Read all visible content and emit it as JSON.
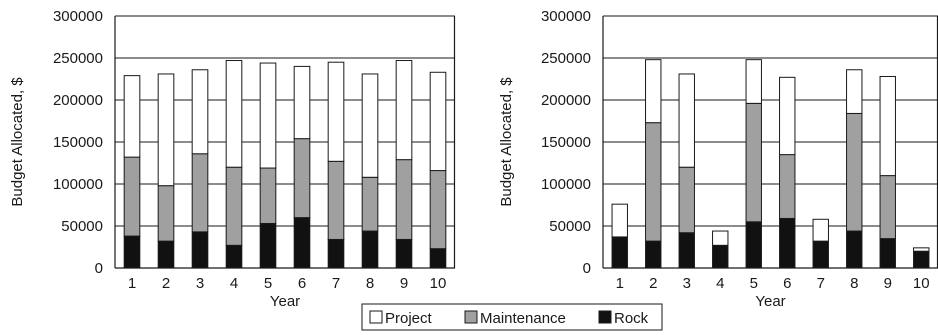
{
  "chart_data": [
    {
      "type": "bar",
      "stacked": true,
      "categories": [
        "1",
        "2",
        "3",
        "4",
        "5",
        "6",
        "7",
        "8",
        "9",
        "10"
      ],
      "series": [
        {
          "name": "Rock",
          "color": "#111111",
          "values": [
            38000,
            32000,
            43000,
            27000,
            53000,
            60000,
            34000,
            44000,
            34000,
            23000
          ]
        },
        {
          "name": "Maintenance",
          "color": "#a0a0a0",
          "values": [
            94000,
            66000,
            93000,
            93000,
            66000,
            94000,
            93000,
            64000,
            95000,
            93000
          ]
        },
        {
          "name": "Project",
          "color": "#ffffff",
          "values": [
            97000,
            133000,
            100000,
            127000,
            125000,
            86000,
            118000,
            123000,
            118000,
            117000
          ]
        }
      ],
      "xlabel": "Year",
      "ylabel": "Budget Allocated, $",
      "ylim": [
        0,
        300000
      ],
      "yticks": [
        "0",
        "50000",
        "100000",
        "150000",
        "200000",
        "250000",
        "300000"
      ],
      "grid": true
    },
    {
      "type": "bar",
      "stacked": true,
      "categories": [
        "1",
        "2",
        "3",
        "4",
        "5",
        "6",
        "7",
        "8",
        "9",
        "10"
      ],
      "series": [
        {
          "name": "Rock",
          "color": "#111111",
          "values": [
            37000,
            32000,
            42000,
            27000,
            55000,
            59000,
            32000,
            44000,
            35000,
            20000
          ]
        },
        {
          "name": "Maintenance",
          "color": "#a0a0a0",
          "values": [
            0,
            141000,
            78000,
            0,
            141000,
            76000,
            0,
            140000,
            75000,
            0
          ]
        },
        {
          "name": "Project",
          "color": "#ffffff",
          "values": [
            39000,
            75000,
            111000,
            17000,
            52000,
            92000,
            26000,
            52000,
            118000,
            4000
          ]
        }
      ],
      "xlabel": "Year",
      "ylabel": "Budget Allocated, $",
      "ylim": [
        0,
        300000
      ],
      "yticks": [
        "0",
        "50000",
        "100000",
        "150000",
        "200000",
        "250000",
        "300000"
      ],
      "grid": true
    }
  ],
  "legend": {
    "placement": "bottom-center",
    "items": [
      {
        "label": "Project",
        "color": "#ffffff"
      },
      {
        "label": "Maintenance",
        "color": "#a0a0a0"
      },
      {
        "label": "Rock",
        "color": "#111111"
      }
    ]
  }
}
